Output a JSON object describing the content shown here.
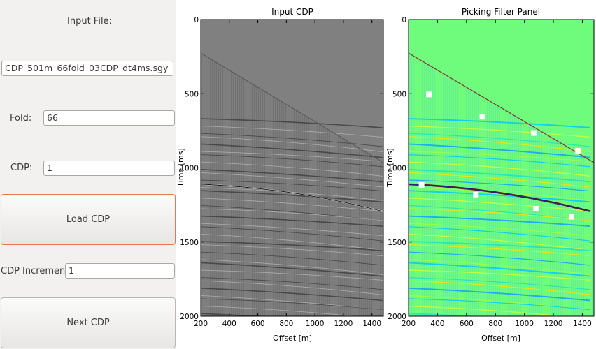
{
  "left_panel": {
    "input_file_label": "Input File:",
    "input_file_value": "CDP_501m_66fold_03CDP_dt4ms.sgy",
    "fold_label": "Fold:",
    "fold_value": "66",
    "cdp_label": "CDP:",
    "cdp_value": "1",
    "load_button": "Load CDP",
    "increment_label": "CDP Increment:",
    "increment_value": "1",
    "next_button": "Next CDP"
  },
  "colors": {
    "panel_bg": "#f2f1f0",
    "focus_border": "#e9774a",
    "seismic_gray": "#7f7f7f",
    "filter_green": "#6ffb7c",
    "pick_marker": "#ffffff"
  },
  "chart_data": [
    {
      "type": "heatmap",
      "title": "Input CDP",
      "xlabel": "Offset [m]",
      "ylabel": "Time [ms]",
      "xlim": [
        200,
        1480
      ],
      "ylim": [
        2000,
        0
      ],
      "x_ticks": [
        200,
        400,
        600,
        800,
        1000,
        1200,
        1400
      ],
      "y_ticks": [
        0,
        500,
        1000,
        1500,
        2000
      ],
      "colormap": "gray",
      "grid": false
    },
    {
      "type": "heatmap",
      "title": "Picking Filter Panel",
      "xlabel": "Offset [m]",
      "ylabel": "Time [ms]",
      "xlim": [
        200,
        1480
      ],
      "ylim": [
        2000,
        0
      ],
      "x_ticks": [
        200,
        400,
        600,
        800,
        1000,
        1200,
        1400
      ],
      "y_ticks": [
        0,
        500,
        1000,
        1500,
        2000
      ],
      "colormap": "jet",
      "grid": false,
      "picks": [
        {
          "x": 340,
          "y": 505
        },
        {
          "x": 710,
          "y": 655
        },
        {
          "x": 1065,
          "y": 765
        },
        {
          "x": 1370,
          "y": 885
        },
        {
          "x": 290,
          "y": 1115
        },
        {
          "x": 665,
          "y": 1180
        },
        {
          "x": 1080,
          "y": 1275
        },
        {
          "x": 1325,
          "y": 1330
        }
      ]
    }
  ]
}
